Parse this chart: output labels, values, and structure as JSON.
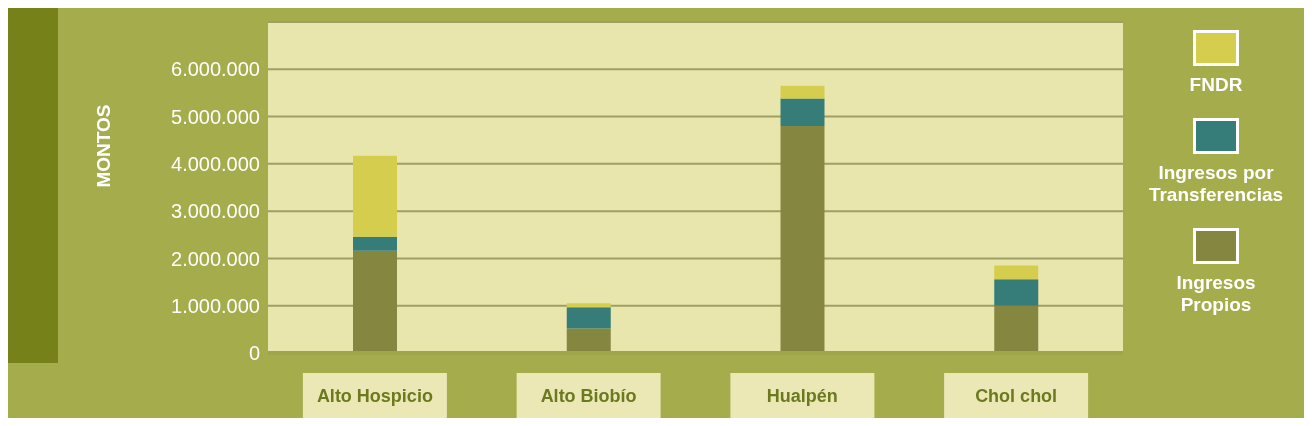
{
  "chart_data": {
    "type": "bar",
    "stacked": true,
    "ylabel": "MONTOS",
    "categories": [
      "Alto Hospicio",
      "Alto Biobío",
      "Hualpén",
      "Chol chol"
    ],
    "series": [
      {
        "name": "Ingresos Propios",
        "color": "#858740",
        "values": [
          2160000,
          520000,
          4800000,
          1000000
        ]
      },
      {
        "name": "Ingresos por Transferencias",
        "color": "#367d7a",
        "values": [
          300000,
          450000,
          580000,
          560000
        ]
      },
      {
        "name": "FNDR",
        "color": "#d5cd4d",
        "values": [
          1710000,
          80000,
          270000,
          290000
        ]
      }
    ],
    "ylim": [
      0,
      7000000
    ],
    "yticks": [
      {
        "value": 0,
        "label": "0"
      },
      {
        "value": 1000000,
        "label": "1.000.000"
      },
      {
        "value": 2000000,
        "label": "2.000.000"
      },
      {
        "value": 3000000,
        "label": "3.000.000"
      },
      {
        "value": 4000000,
        "label": "4.000.000"
      },
      {
        "value": 5000000,
        "label": "5.000.000"
      },
      {
        "value": 6000000,
        "label": "6.000.000"
      }
    ],
    "grid": "y",
    "legend": "right"
  }
}
